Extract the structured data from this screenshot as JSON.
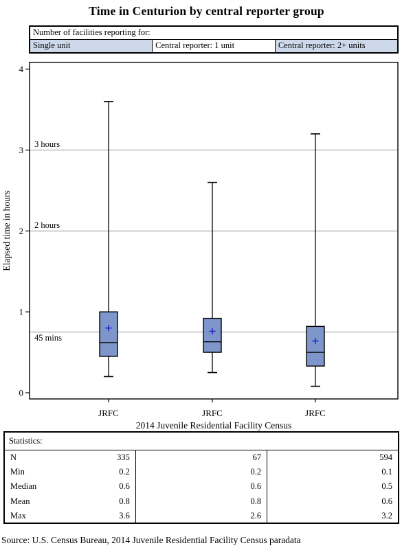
{
  "title": "Time in Centurion by central reporter group",
  "header_table": {
    "caption": "Number of facilities reporting for:",
    "columns": [
      "Single unit",
      "Central reporter: 1 unit",
      "Central reporter: 2+ units"
    ]
  },
  "chart_data": {
    "type": "boxplot",
    "title": "Time in Centurion by central reporter group",
    "xlabel": "2014 Juvenile Residential Facility Census",
    "ylabel": "Elapsed time in hours",
    "ylim": [
      0,
      4
    ],
    "yticks": [
      0,
      1,
      2,
      3,
      4
    ],
    "categories": [
      "JRFC",
      "JRFC",
      "JRFC"
    ],
    "reference_lines": [
      {
        "value": 3,
        "label": "3 hours",
        "label_position": "above"
      },
      {
        "value": 2,
        "label": "2 hours",
        "label_position": "above"
      },
      {
        "value": 0.75,
        "label": "45 mins",
        "label_position": "below"
      }
    ],
    "series": [
      {
        "group": "Single unit",
        "whisker_low": 0.2,
        "q1": 0.45,
        "median": 0.62,
        "q3": 1.0,
        "whisker_high": 3.6,
        "mean": 0.8
      },
      {
        "group": "Central reporter: 1 unit",
        "whisker_low": 0.25,
        "q1": 0.5,
        "median": 0.63,
        "q3": 0.92,
        "whisker_high": 2.6,
        "mean": 0.76
      },
      {
        "group": "Central reporter: 2+ units",
        "whisker_low": 0.08,
        "q1": 0.33,
        "median": 0.5,
        "q3": 0.82,
        "whisker_high": 3.2,
        "mean": 0.64
      }
    ],
    "colors": {
      "box_fill": "#7e96c9",
      "box_stroke": "#000000",
      "median_line": "#000000",
      "mean_marker": "#2323c8",
      "reference_line": "#929292",
      "frame": "#000000"
    }
  },
  "stats_table": {
    "caption": "Statistics:",
    "rows": [
      {
        "label": "N",
        "values": [
          "335",
          "67",
          "594"
        ]
      },
      {
        "label": "Min",
        "values": [
          "0.2",
          "0.2",
          "0.1"
        ]
      },
      {
        "label": "Median",
        "values": [
          "0.6",
          "0.6",
          "0.5"
        ]
      },
      {
        "label": "Mean",
        "values": [
          "0.8",
          "0.8",
          "0.6"
        ]
      },
      {
        "label": "Max",
        "values": [
          "3.6",
          "2.6",
          "3.2"
        ]
      }
    ]
  },
  "source_note": "Source: U.S. Census Bureau, 2014 Juvenile Residential Facility Census paradata"
}
